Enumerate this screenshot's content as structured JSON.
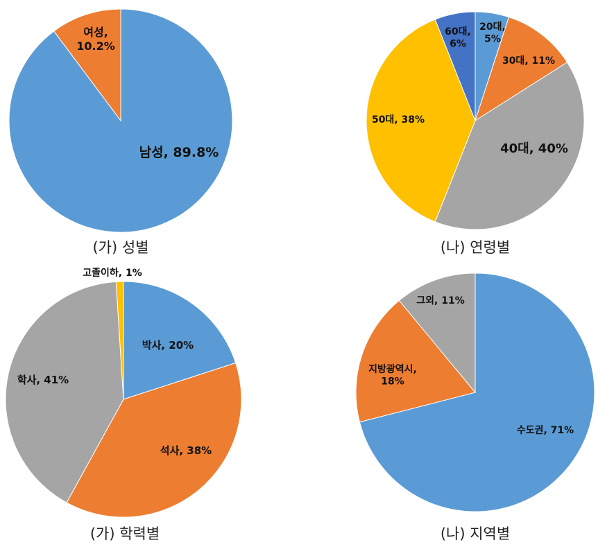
{
  "colors": {
    "blue": "#5B9BD5",
    "orange": "#ED7D31",
    "gray": "#A5A5A5",
    "yellow": "#FFC000",
    "darkblue": "#4472C4"
  },
  "chart_data": [
    {
      "type": "pie",
      "title": "(가) 성별",
      "slices": [
        {
          "label": "남성, 89.8%",
          "value": 89.8,
          "color": "blue"
        },
        {
          "label": "여성, 10.2%",
          "value": 10.2,
          "color": "orange"
        }
      ]
    },
    {
      "type": "pie",
      "title": "(나) 연령별",
      "slices": [
        {
          "label": "20대, 5%",
          "value": 5,
          "color": "blue"
        },
        {
          "label": "30대, 11%",
          "value": 11,
          "color": "orange"
        },
        {
          "label": "40대, 40%",
          "value": 40,
          "color": "gray"
        },
        {
          "label": "50대, 38%",
          "value": 38,
          "color": "yellow"
        },
        {
          "label": "60대, 6%",
          "value": 6,
          "color": "darkblue"
        }
      ]
    },
    {
      "type": "pie",
      "title": "(가) 학력별",
      "slices": [
        {
          "label": "박사, 20%",
          "value": 20,
          "color": "blue"
        },
        {
          "label": "석사, 38%",
          "value": 38,
          "color": "orange"
        },
        {
          "label": "학사, 41%",
          "value": 41,
          "color": "gray"
        },
        {
          "label": "고졸이하, 1%",
          "value": 1,
          "color": "yellow"
        }
      ]
    },
    {
      "type": "pie",
      "title": "(나) 지역별",
      "slices": [
        {
          "label": "수도권, 71%",
          "value": 71,
          "color": "blue"
        },
        {
          "label": "지방광역시, 18%",
          "value": 18,
          "color": "orange"
        },
        {
          "label": "그외, 11%",
          "value": 11,
          "color": "gray"
        }
      ]
    }
  ]
}
